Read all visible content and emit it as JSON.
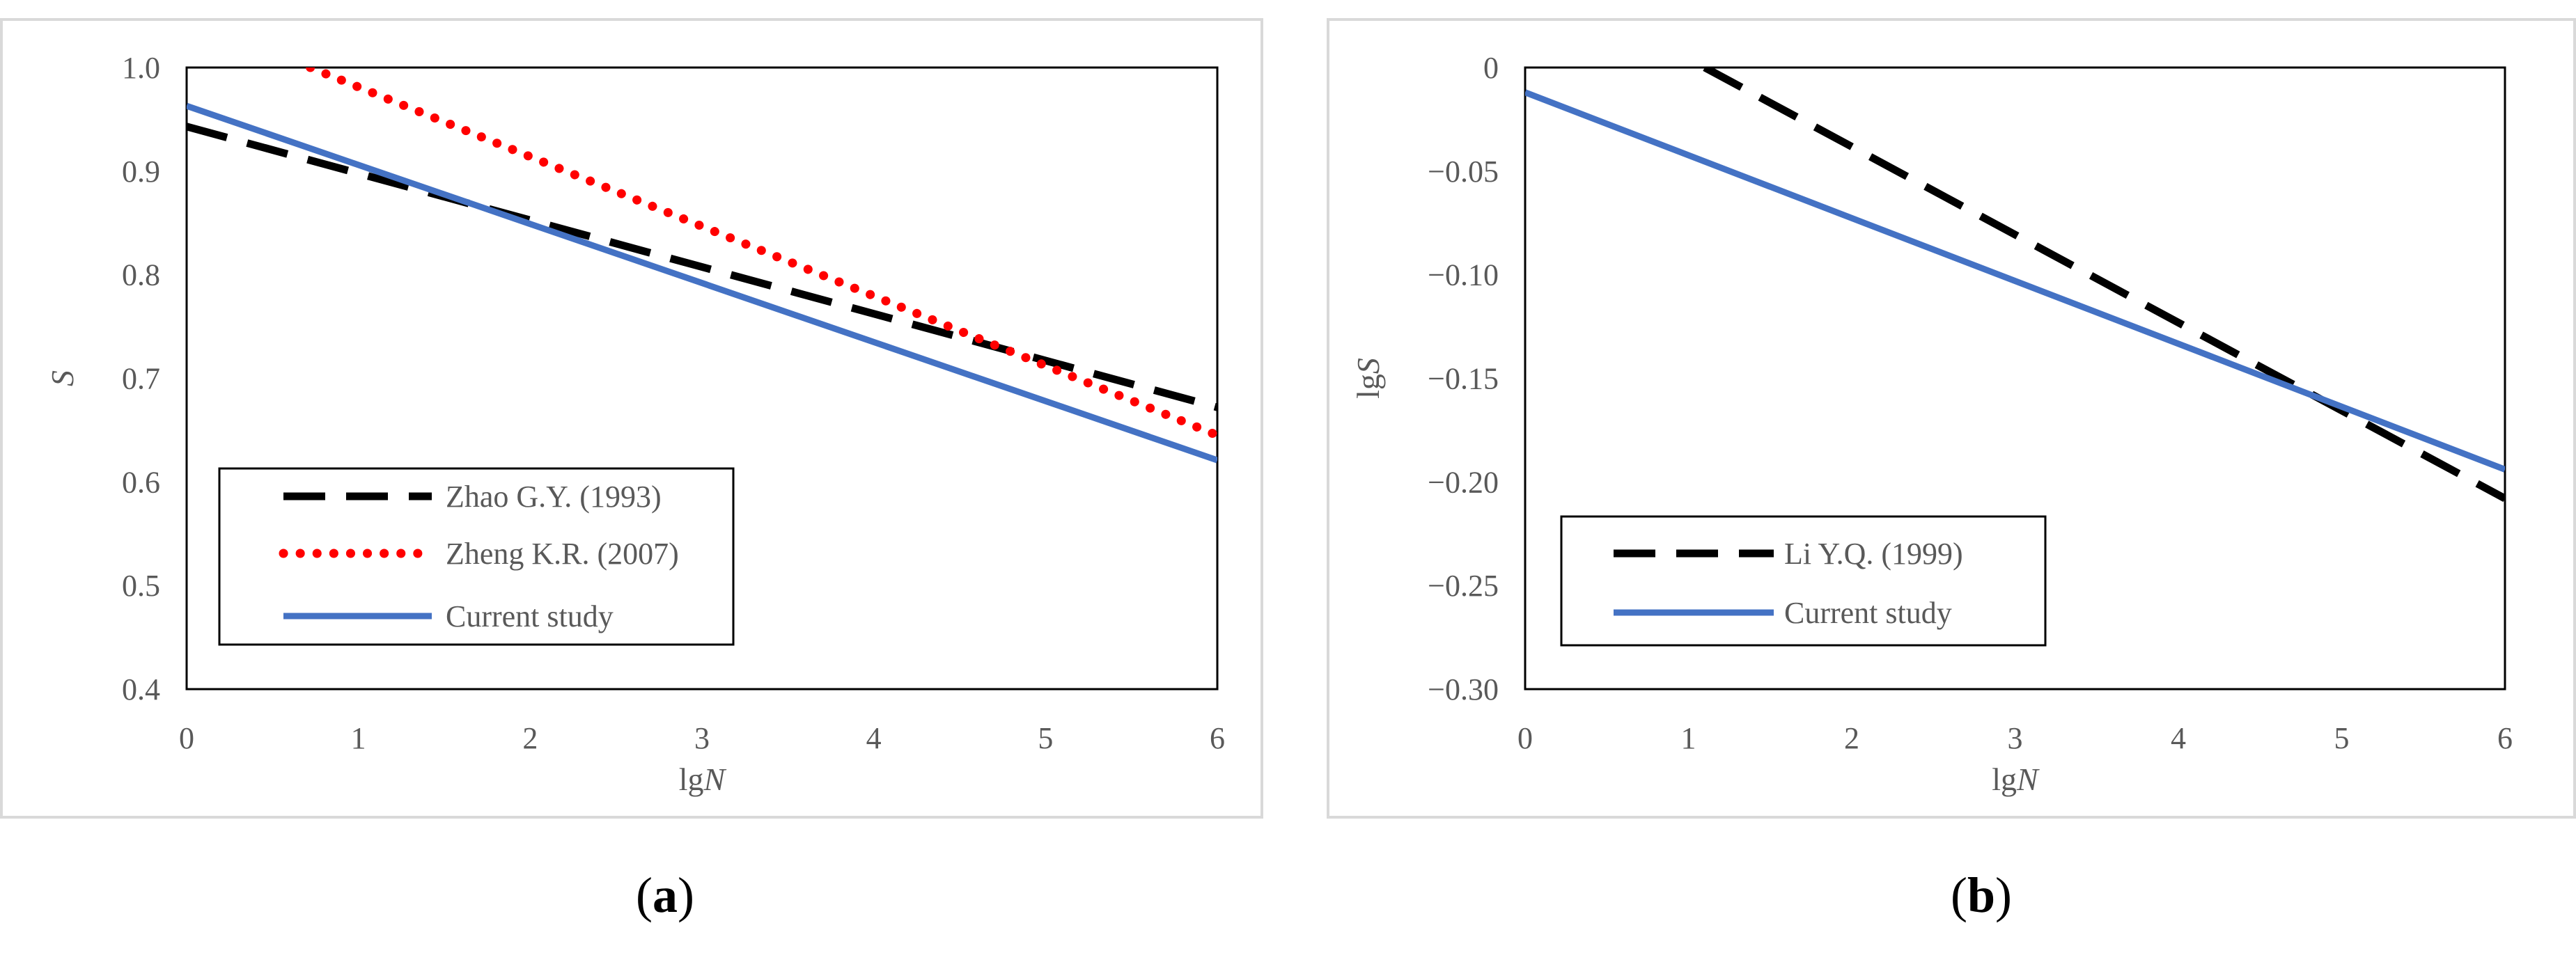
{
  "chart_data": [
    {
      "type": "line",
      "panel_label": "a",
      "xlabel": "lgN",
      "ylabel": "S",
      "xlim": [
        0,
        6
      ],
      "ylim": [
        0.4,
        1.0
      ],
      "x_ticks": [
        "0",
        "1",
        "2",
        "3",
        "4",
        "5",
        "6"
      ],
      "y_ticks": [
        "0.4",
        "0.5",
        "0.6",
        "0.7",
        "0.8",
        "0.9",
        "1.0"
      ],
      "grid": false,
      "legend_position": "bottom-left",
      "series": [
        {
          "name": "Zhao G.Y. (1993)",
          "style": "dashed",
          "color": "#000000",
          "x": [
            0,
            6
          ],
          "y": [
            0.943,
            0.672
          ]
        },
        {
          "name": "Zheng K.R. (2007)",
          "style": "dotted",
          "color": "#ff0000",
          "x": [
            0.72,
            6
          ],
          "y": [
            1.0,
            0.645
          ]
        },
        {
          "name": "Current study",
          "style": "solid",
          "color": "#4472c4",
          "x": [
            0,
            6
          ],
          "y": [
            0.963,
            0.621
          ]
        }
      ]
    },
    {
      "type": "line",
      "panel_label": "b",
      "xlabel": "lgN",
      "ylabel": "lgS",
      "xlim": [
        0,
        6
      ],
      "ylim": [
        -0.3,
        0
      ],
      "x_ticks": [
        "0",
        "1",
        "2",
        "3",
        "4",
        "5",
        "6"
      ],
      "y_ticks": [
        "−0.30",
        "−0.25",
        "−0.20",
        "−0.15",
        "−0.10",
        "−0.05",
        "0"
      ],
      "grid": false,
      "legend_position": "bottom-left",
      "series": [
        {
          "name": "Li Y.Q. (1999)",
          "style": "dashed",
          "color": "#000000",
          "x": [
            1.1,
            6
          ],
          "y": [
            0,
            -0.208
          ]
        },
        {
          "name": "Current study",
          "style": "solid",
          "color": "#4472c4",
          "x": [
            0,
            6
          ],
          "y": [
            -0.012,
            -0.194
          ]
        }
      ]
    }
  ]
}
